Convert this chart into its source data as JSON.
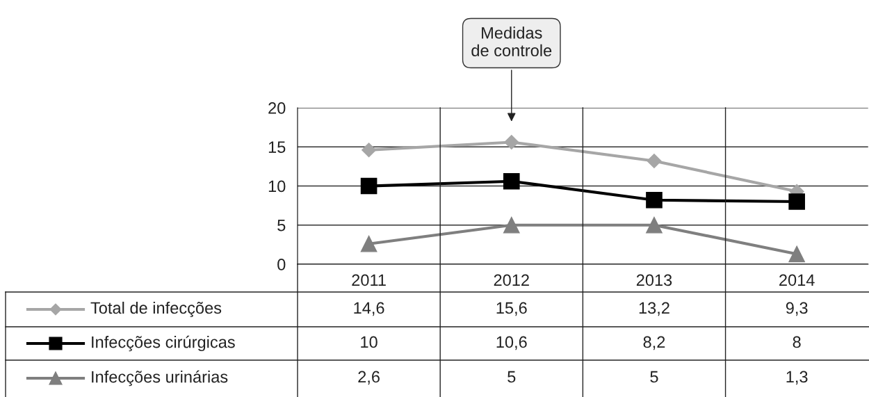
{
  "chart_data": {
    "type": "line",
    "categories": [
      "2011",
      "2012",
      "2013",
      "2014"
    ],
    "series": [
      {
        "name": "Total de infecções",
        "color": "#a6a6a6",
        "marker": "diamond",
        "values": [
          14.6,
          15.6,
          13.2,
          9.3
        ]
      },
      {
        "name": "Infecções cirúrgicas",
        "color": "#000000",
        "marker": "square",
        "values": [
          10,
          10.6,
          8.2,
          8
        ]
      },
      {
        "name": "Infecções urinárias",
        "color": "#7f7f7f",
        "marker": "triangle",
        "values": [
          2.6,
          5,
          5,
          1.3
        ]
      }
    ],
    "ylim": [
      0,
      20
    ],
    "yticks": [
      0,
      5,
      10,
      15,
      20
    ],
    "grid": "y",
    "legend": "bottom left",
    "value_labels": [
      [
        "14,6",
        "15,6",
        "13,2",
        "9,3"
      ],
      [
        "10",
        "10,6",
        "8,2",
        "8"
      ],
      [
        "2,6",
        "5",
        "5",
        "1,3"
      ]
    ],
    "annotations": [
      "Medidas\nde controle"
    ]
  }
}
